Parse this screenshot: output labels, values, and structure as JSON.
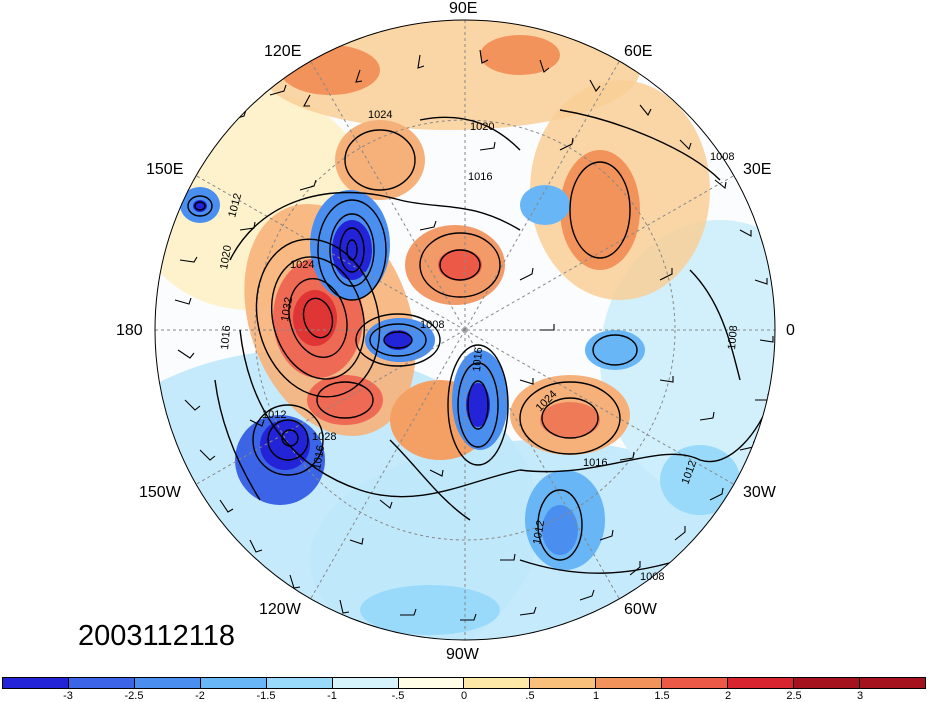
{
  "map": {
    "projection": "north-polar-stereographic",
    "longitude_labels": [
      "90E",
      "60E",
      "30E",
      "0",
      "30W",
      "60W",
      "90W",
      "120W",
      "150W",
      "180",
      "150E",
      "120E"
    ],
    "isobar_labels": [
      "1024",
      "1020",
      "1008",
      "1012",
      "1020",
      "1024",
      "1032",
      "1016",
      "1008",
      "1028",
      "1012",
      "1016",
      "1016",
      "1024",
      "1016",
      "1012",
      "1012",
      "1008",
      "1008",
      "1016"
    ],
    "colors": {
      "negative_strong": "#1a1aff",
      "positive_strong": "#e01a1a",
      "near_zero_light_blue": "#d8f4ff",
      "near_zero_light_yellow": "#fff6c8",
      "contour": "#000000",
      "wind_barb": "#000000"
    }
  },
  "timestamp": "2003112118",
  "colorbar": {
    "tick_labels": [
      "-3",
      "-2.5",
      "-2",
      "-1.5",
      "-1",
      "-.5",
      "0",
      ".5",
      "1",
      "1.5",
      "2",
      "2.5",
      "3"
    ],
    "bin_colors": [
      "#2323d8",
      "#3b64e6",
      "#4a8ff0",
      "#68b6f5",
      "#99dafa",
      "#d6f3fc",
      "#fffde6",
      "#fde8a8",
      "#f8c07a",
      "#f2935c",
      "#ec5a47",
      "#d8242f",
      "#a4121d",
      "#a4121d"
    ]
  }
}
